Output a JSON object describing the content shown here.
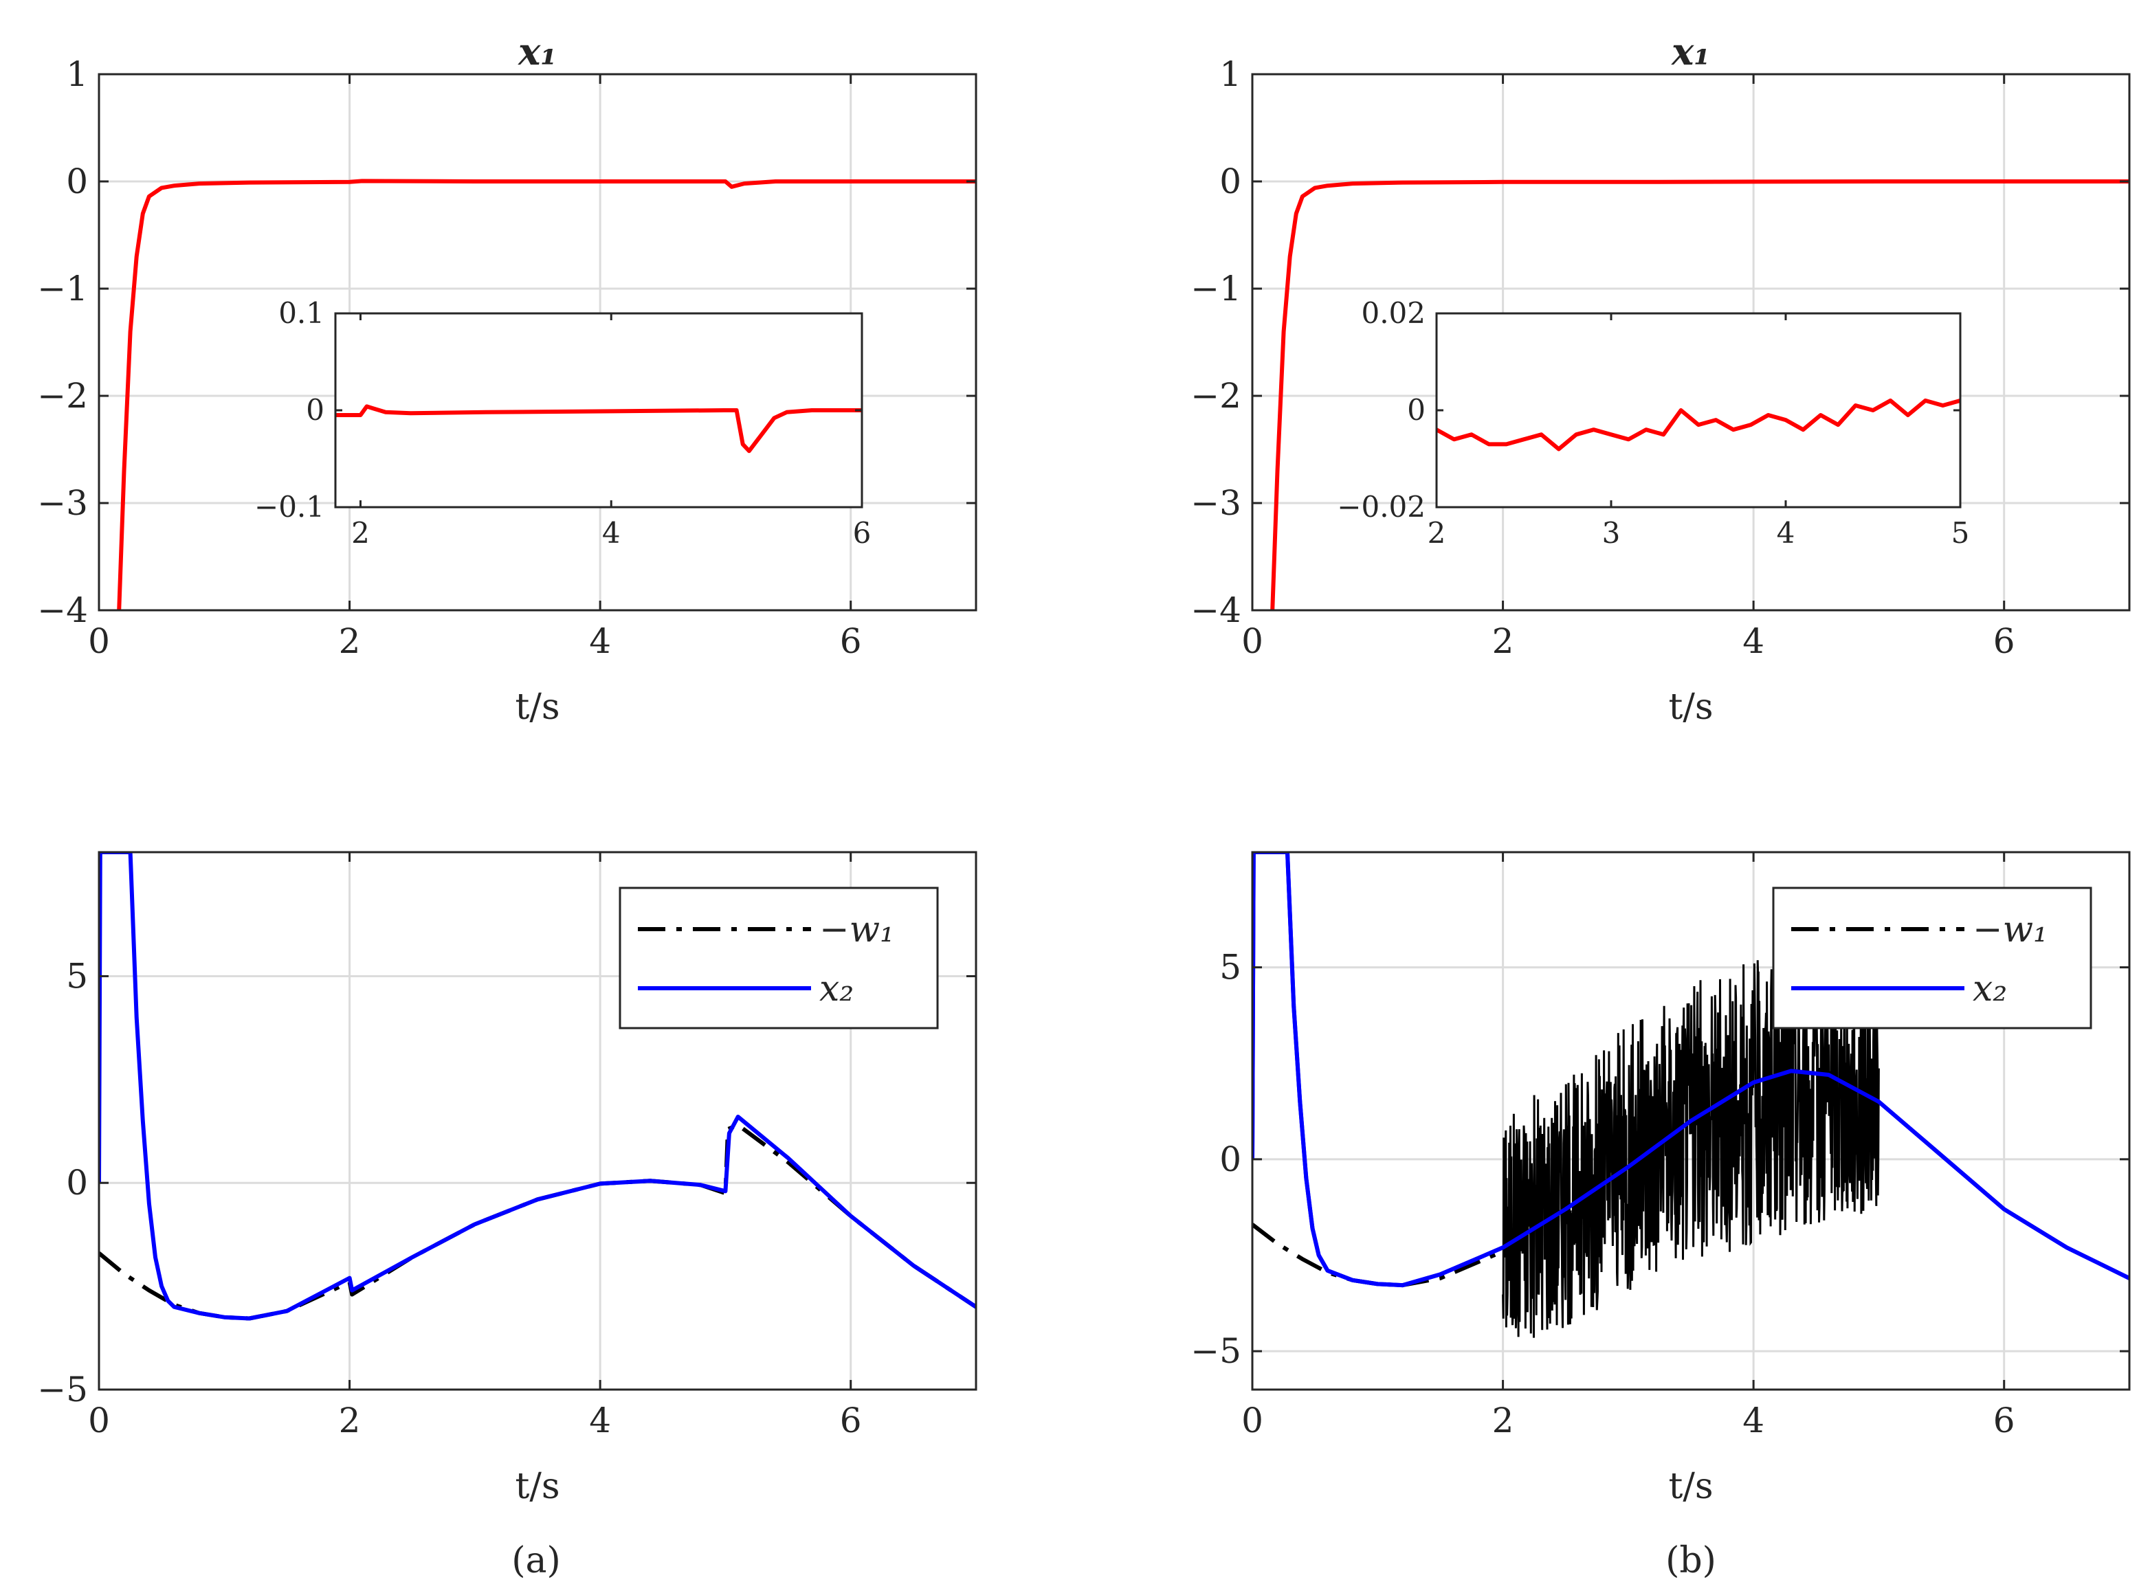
{
  "figure": {
    "panel_labels": [
      "(a)",
      "(b)"
    ]
  },
  "chart_data": [
    {
      "id": "a-top",
      "type": "line",
      "title": "x₁",
      "xlabel": "t/s",
      "ylabel": "",
      "xlim": [
        0,
        7
      ],
      "ylim": [
        -4,
        1
      ],
      "xticks": [
        0,
        2,
        4,
        6
      ],
      "xtick_labels": [
        "0",
        "2",
        "4",
        "6"
      ],
      "yticks": [
        1,
        0,
        -1,
        -2,
        -3,
        -4
      ],
      "ytick_labels": [
        "1",
        "0",
        "−1",
        "−2",
        "−3",
        "−4"
      ],
      "grid": true,
      "legend": null,
      "series": [
        {
          "color": "#ff0000",
          "x": [
            0.16,
            0.2,
            0.25,
            0.3,
            0.35,
            0.4,
            0.5,
            0.6,
            0.8,
            1.2,
            2.0,
            2.1,
            3.0,
            5.0,
            5.05,
            5.15,
            5.4,
            6.0,
            7.0
          ],
          "y": [
            -4.0,
            -2.7,
            -1.4,
            -0.7,
            -0.3,
            -0.14,
            -0.06,
            -0.04,
            -0.02,
            -0.01,
            -0.005,
            0.004,
            0.0,
            0.0,
            -0.05,
            -0.02,
            0.0,
            0.0,
            0.0
          ]
        }
      ],
      "inset": {
        "xlim": [
          1.8,
          6
        ],
        "ylim": [
          -0.1,
          0.1
        ],
        "xticks": [
          2,
          4,
          6
        ],
        "xtick_labels": [
          "2",
          "4",
          "6"
        ],
        "yticks": [
          0.1,
          0,
          -0.1
        ],
        "ytick_labels": [
          "0.1",
          "0",
          "−0.1"
        ],
        "series": [
          {
            "color": "#ff0000",
            "x": [
              1.8,
              1.95,
              2.0,
              2.05,
              2.1,
              2.2,
              2.4,
              3.0,
              4.0,
              4.9,
              5.0,
              5.05,
              5.1,
              5.2,
              5.3,
              5.4,
              5.6,
              6.0
            ],
            "y": [
              -0.005,
              -0.005,
              -0.005,
              0.004,
              0.002,
              -0.002,
              -0.003,
              -0.002,
              -0.001,
              0.0,
              0.0,
              -0.035,
              -0.042,
              -0.025,
              -0.008,
              -0.002,
              0.0,
              0.0
            ]
          }
        ]
      }
    },
    {
      "id": "b-top",
      "type": "line",
      "title": "x₁",
      "xlabel": "t/s",
      "ylabel": "",
      "xlim": [
        0,
        7
      ],
      "ylim": [
        -4,
        1
      ],
      "xticks": [
        0,
        2,
        4,
        6
      ],
      "xtick_labels": [
        "0",
        "2",
        "4",
        "6"
      ],
      "yticks": [
        1,
        0,
        -1,
        -2,
        -3,
        -4
      ],
      "ytick_labels": [
        "1",
        "0",
        "−1",
        "−2",
        "−3",
        "−4"
      ],
      "grid": true,
      "legend": null,
      "series": [
        {
          "color": "#ff0000",
          "x": [
            0.16,
            0.2,
            0.25,
            0.3,
            0.35,
            0.4,
            0.5,
            0.6,
            0.8,
            1.2,
            2.0,
            3.0,
            5.0,
            7.0
          ],
          "y": [
            -4.0,
            -2.7,
            -1.4,
            -0.7,
            -0.3,
            -0.14,
            -0.06,
            -0.04,
            -0.02,
            -0.01,
            -0.005,
            -0.005,
            0.0,
            0.0
          ]
        }
      ],
      "inset": {
        "xlim": [
          2,
          5
        ],
        "ylim": [
          -0.02,
          0.02
        ],
        "xticks": [
          2,
          3,
          4,
          5
        ],
        "xtick_labels": [
          "2",
          "3",
          "4",
          "5"
        ],
        "yticks": [
          0.02,
          0,
          -0.02
        ],
        "ytick_labels": [
          "0.02",
          "0",
          "−0.02"
        ],
        "series": [
          {
            "color": "#ff0000",
            "x": [
              2.0,
              2.1,
              2.2,
              2.3,
              2.4,
              2.5,
              2.6,
              2.7,
              2.8,
              2.9,
              3.0,
              3.1,
              3.2,
              3.3,
              3.4,
              3.5,
              3.6,
              3.7,
              3.8,
              3.9,
              4.0,
              4.1,
              4.2,
              4.3,
              4.4,
              4.5,
              4.6,
              4.7,
              4.8,
              4.9,
              5.0
            ],
            "y": [
              -0.004,
              -0.006,
              -0.005,
              -0.007,
              -0.007,
              -0.006,
              -0.005,
              -0.008,
              -0.005,
              -0.004,
              -0.005,
              -0.006,
              -0.004,
              -0.005,
              0.0,
              -0.003,
              -0.002,
              -0.004,
              -0.003,
              -0.001,
              -0.002,
              -0.004,
              -0.001,
              -0.003,
              0.001,
              0.0,
              0.002,
              -0.001,
              0.002,
              0.001,
              0.002
            ]
          }
        ]
      }
    },
    {
      "id": "a-bottom",
      "type": "line",
      "title": "",
      "xlabel": "t/s",
      "ylabel": "",
      "xlim": [
        0,
        7
      ],
      "ylim": [
        -5,
        8
      ],
      "xticks": [
        0,
        2,
        4,
        6
      ],
      "xtick_labels": [
        "0",
        "2",
        "4",
        "6"
      ],
      "yticks": [
        5,
        0,
        -5
      ],
      "ytick_labels": [
        "5",
        "0",
        "−5"
      ],
      "grid": true,
      "legend": {
        "placement": "top-right"
      },
      "series": [
        {
          "name": "−w₁",
          "color": "#000000",
          "dash": "dashdot",
          "x": [
            0.0,
            0.2,
            0.4,
            0.6,
            0.8,
            1.0,
            1.2,
            1.5,
            2.0,
            2.02,
            2.5,
            3.0,
            3.5,
            4.0,
            4.4,
            4.8,
            5.0,
            5.02,
            5.1,
            5.5,
            6.0,
            6.5,
            7.0
          ],
          "y": [
            -1.7,
            -2.2,
            -2.6,
            -2.95,
            -3.15,
            -3.25,
            -3.28,
            -3.1,
            -2.4,
            -2.7,
            -1.8,
            -1.0,
            -0.4,
            -0.02,
            0.05,
            -0.05,
            -0.25,
            1.3,
            1.4,
            0.5,
            -0.8,
            -2.0,
            -3.0
          ]
        },
        {
          "name": "x₂",
          "color": "#0000ff",
          "dash": "solid",
          "x": [
            0.0,
            0.01,
            0.25,
            0.3,
            0.35,
            0.4,
            0.45,
            0.5,
            0.55,
            0.6,
            0.8,
            1.0,
            1.2,
            1.5,
            2.0,
            2.02,
            2.5,
            3.0,
            3.5,
            4.0,
            4.4,
            4.8,
            5.0,
            5.03,
            5.1,
            5.5,
            6.0,
            6.5,
            7.0
          ],
          "y": [
            0.0,
            8.0,
            8.0,
            4.0,
            1.5,
            -0.5,
            -1.8,
            -2.5,
            -2.85,
            -3.0,
            -3.15,
            -3.25,
            -3.28,
            -3.1,
            -2.3,
            -2.6,
            -1.8,
            -1.0,
            -0.4,
            -0.02,
            0.05,
            -0.05,
            -0.2,
            1.2,
            1.6,
            0.6,
            -0.8,
            -2.0,
            -3.0
          ]
        }
      ]
    },
    {
      "id": "b-bottom",
      "type": "line",
      "title": "",
      "xlabel": "t/s",
      "ylabel": "",
      "xlim": [
        0,
        7
      ],
      "ylim": [
        -6,
        8
      ],
      "xticks": [
        0,
        2,
        4,
        6
      ],
      "xtick_labels": [
        "0",
        "2",
        "4",
        "6"
      ],
      "yticks": [
        5,
        0,
        -5
      ],
      "ytick_labels": [
        "5",
        "0",
        "−5"
      ],
      "grid": true,
      "legend": {
        "placement": "top-right"
      },
      "series": [
        {
          "name": "−w₁",
          "color": "#000000",
          "dash": "dashdot",
          "x": [
            0.0,
            0.2,
            0.4,
            0.6,
            0.8,
            1.0,
            1.2,
            1.5,
            2.0
          ],
          "y": [
            -1.7,
            -2.2,
            -2.6,
            -2.95,
            -3.15,
            -3.25,
            -3.28,
            -3.1,
            -2.4
          ]
        },
        {
          "name": "−w₁",
          "color": "#000000",
          "dash": "solid",
          "noisy_band": true,
          "x": [
            2.0,
            2.5,
            3.0,
            3.5,
            4.0,
            4.5,
            5.0
          ],
          "lower": [
            -5.0,
            -4.4,
            -3.5,
            -2.6,
            -2.3,
            -1.8,
            -1.4
          ],
          "upper": [
            1.2,
            2.2,
            3.5,
            4.6,
            5.2,
            5.0,
            4.2
          ]
        },
        {
          "name": "x₂",
          "color": "#0000ff",
          "dash": "solid",
          "x": [
            0.0,
            0.01,
            0.28,
            0.33,
            0.38,
            0.43,
            0.48,
            0.53,
            0.6,
            0.8,
            1.0,
            1.2,
            1.5,
            2.0,
            2.5,
            3.0,
            3.5,
            4.0,
            4.3,
            4.6,
            5.0,
            5.5,
            6.0,
            6.5,
            7.0
          ],
          "y": [
            0.0,
            8.0,
            8.0,
            4.0,
            1.5,
            -0.5,
            -1.8,
            -2.5,
            -2.9,
            -3.15,
            -3.25,
            -3.28,
            -3.0,
            -2.3,
            -1.3,
            -0.2,
            1.0,
            2.0,
            2.3,
            2.2,
            1.5,
            0.1,
            -1.3,
            -2.3,
            -3.1
          ]
        }
      ]
    }
  ]
}
